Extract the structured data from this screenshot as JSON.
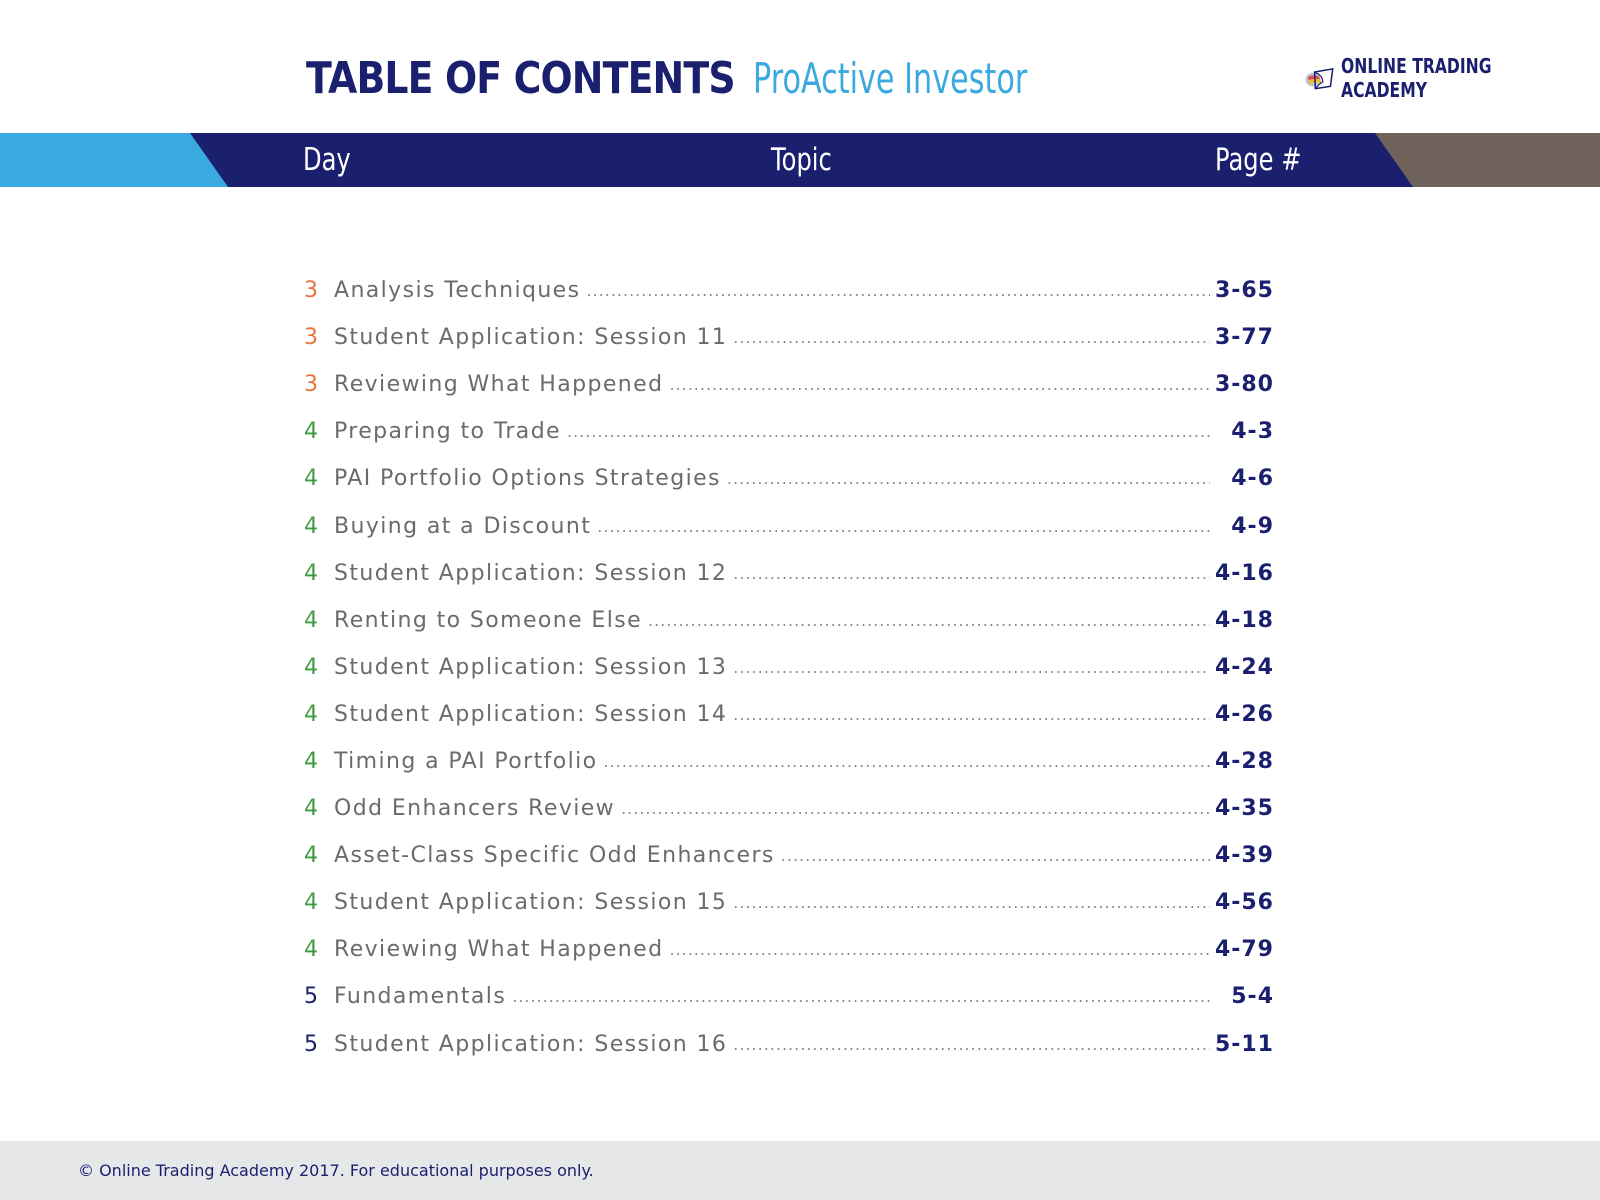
{
  "header": {
    "title": "TABLE OF CONTENTS",
    "subtitle": "ProActive Investor",
    "logo": {
      "icon": "academy-book-globe-logo-icon",
      "line1": "ONLINE TRADING",
      "line2": "ACADEMY"
    }
  },
  "columns": {
    "day": "Day",
    "topic": "Topic",
    "page": "Page #"
  },
  "colors": {
    "navy": "#1a1f6e",
    "light_blue": "#3aa9e0",
    "taupe": "#6e625a",
    "day3": "#e8743b",
    "day4": "#3f9b3f",
    "day5": "#1a1f6e",
    "footer_bg": "#e6e7e8"
  },
  "toc": [
    {
      "day": "3",
      "topic": "Analysis Techniques",
      "page": "3-65"
    },
    {
      "day": "3",
      "topic": "Student Application: Session 11",
      "page": "3-77"
    },
    {
      "day": "3",
      "topic": "Reviewing What Happened",
      "page": "3-80"
    },
    {
      "day": "4",
      "topic": "Preparing to Trade",
      "page": "4-3"
    },
    {
      "day": "4",
      "topic": "PAI Portfolio Options Strategies",
      "page": "4-6"
    },
    {
      "day": "4",
      "topic": "Buying at a Discount",
      "page": "4-9"
    },
    {
      "day": "4",
      "topic": "Student Application: Session 12",
      "page": "4-16"
    },
    {
      "day": "4",
      "topic": "Renting to Someone Else",
      "page": "4-18"
    },
    {
      "day": "4",
      "topic": "Student Application: Session 13",
      "page": "4-24"
    },
    {
      "day": "4",
      "topic": "Student Application: Session 14",
      "page": "4-26"
    },
    {
      "day": "4",
      "topic": "Timing a PAI Portfolio",
      "page": "4-28"
    },
    {
      "day": "4",
      "topic": "Odd Enhancers Review",
      "page": "4-35"
    },
    {
      "day": "4",
      "topic": "Asset-Class Specific Odd Enhancers",
      "page": "4-39"
    },
    {
      "day": "4",
      "topic": "Student Application: Session 15",
      "page": "4-56"
    },
    {
      "day": "4",
      "topic": "Reviewing What Happened",
      "page": "4-79"
    },
    {
      "day": "5",
      "topic": "Fundamentals",
      "page": "5-4"
    },
    {
      "day": "5",
      "topic": "Student Application: Session 16",
      "page": "5-11"
    }
  ],
  "footer": {
    "copyright": "© Online Trading Academy 2017. For educational purposes only."
  }
}
